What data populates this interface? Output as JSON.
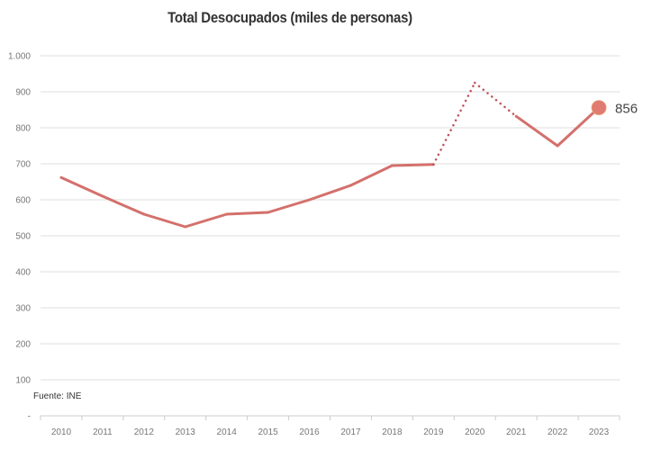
{
  "chart_data": {
    "type": "line",
    "title": "Total Desocupados (miles de personas)",
    "xlabel": "",
    "ylabel": "",
    "categories": [
      "2010",
      "2011",
      "2012",
      "2013",
      "2014",
      "2015",
      "2016",
      "2017",
      "2018",
      "2019",
      "2020",
      "2021",
      "2022",
      "2023"
    ],
    "series": [
      {
        "name": "Total Desocupados",
        "values": [
          662,
          610,
          560,
          525,
          560,
          565,
          600,
          640,
          695,
          698,
          925,
          832,
          750,
          856
        ],
        "dotted_segments": [
          "2019-2020",
          "2020-2021"
        ]
      }
    ],
    "ylim": [
      0,
      1000
    ],
    "yticks": [
      0,
      100,
      200,
      300,
      400,
      500,
      600,
      700,
      800,
      900,
      1000
    ],
    "ytick_labels": [
      "-",
      "100",
      "200",
      "300",
      "400",
      "500",
      "600",
      "700",
      "800",
      "900",
      "1.000"
    ],
    "grid": true,
    "annotation": {
      "label": "856",
      "category": "2023"
    },
    "source": "Fuente: INE",
    "colors": {
      "line": "#d4706c",
      "marker": "#e07b72",
      "grid": "#e3e3e3"
    }
  }
}
